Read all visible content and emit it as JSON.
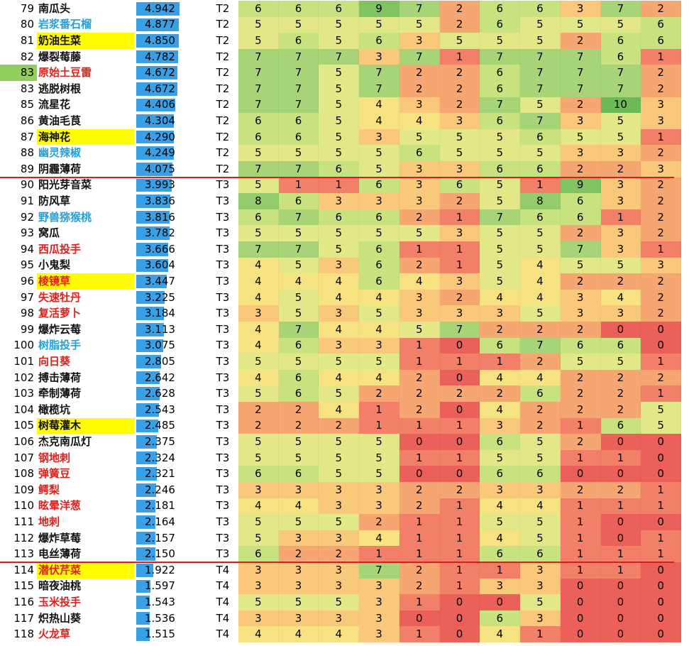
{
  "rows": [
    {
      "rank": "79",
      "name": "南瓜头",
      "color": "black",
      "hl": false,
      "score": "4.942",
      "tier": "T2",
      "vals": [
        6,
        6,
        6,
        9,
        7,
        2,
        6,
        6,
        3,
        7,
        2
      ]
    },
    {
      "rank": "80",
      "name": "岩浆番石榴",
      "color": "blue",
      "hl": false,
      "score": "4.877",
      "tier": "T2",
      "vals": [
        5,
        5,
        5,
        5,
        5,
        2,
        6,
        5,
        5,
        5,
        6
      ]
    },
    {
      "rank": "81",
      "name": "奶油生菜",
      "color": "black",
      "hl": true,
      "score": "4.850",
      "tier": "T2",
      "vals": [
        5,
        6,
        5,
        6,
        3,
        5,
        5,
        5,
        2,
        6,
        6
      ]
    },
    {
      "rank": "82",
      "name": "爆裂莓藤",
      "color": "black",
      "hl": false,
      "score": "4.782",
      "tier": "T2",
      "vals": [
        7,
        7,
        7,
        3,
        7,
        1,
        7,
        7,
        7,
        6,
        1
      ]
    },
    {
      "rank": "83",
      "name": "原始土豆雷",
      "color": "red",
      "hl": false,
      "score": "4.672",
      "tier": "T2",
      "vals": [
        7,
        7,
        5,
        7,
        2,
        2,
        6,
        7,
        7,
        7,
        2
      ],
      "mark": true
    },
    {
      "rank": "83",
      "name": "逃脱树根",
      "color": "black",
      "hl": false,
      "score": "4.672",
      "tier": "T2",
      "vals": [
        7,
        7,
        5,
        7,
        2,
        2,
        6,
        7,
        7,
        7,
        2
      ]
    },
    {
      "rank": "85",
      "name": "流星花",
      "color": "black",
      "hl": false,
      "score": "4.406",
      "tier": "T2",
      "vals": [
        7,
        7,
        5,
        4,
        3,
        2,
        7,
        5,
        2,
        10,
        3
      ]
    },
    {
      "rank": "86",
      "name": "黄油毛茛",
      "color": "black",
      "hl": false,
      "score": "4.304",
      "tier": "T2",
      "vals": [
        6,
        6,
        5,
        4,
        4,
        3,
        6,
        7,
        3,
        5,
        3
      ]
    },
    {
      "rank": "87",
      "name": "海神花",
      "color": "black",
      "hl": true,
      "score": "4.290",
      "tier": "T2",
      "vals": [
        6,
        6,
        5,
        3,
        5,
        5,
        5,
        6,
        5,
        5,
        1
      ]
    },
    {
      "rank": "88",
      "name": "幽灵辣椒",
      "color": "blue",
      "hl": false,
      "score": "4.249",
      "tier": "T2",
      "vals": [
        5,
        5,
        5,
        5,
        6,
        5,
        5,
        5,
        3,
        3,
        2
      ]
    },
    {
      "rank": "89",
      "name": "阴霾薄荷",
      "color": "black",
      "hl": false,
      "score": "4.075",
      "tier": "T2",
      "vals": [
        7,
        7,
        6,
        5,
        3,
        3,
        6,
        6,
        2,
        2,
        3
      ]
    },
    {
      "rank": "90",
      "name": "阳光芽音菜",
      "color": "black",
      "hl": false,
      "score": "3.993",
      "tier": "T3",
      "vals": [
        5,
        1,
        1,
        6,
        3,
        6,
        5,
        1,
        9,
        3,
        2
      ]
    },
    {
      "rank": "91",
      "name": "防风草",
      "color": "black",
      "hl": false,
      "score": "3.836",
      "tier": "T3",
      "vals": [
        8,
        6,
        3,
        3,
        3,
        2,
        5,
        8,
        6,
        3,
        2
      ]
    },
    {
      "rank": "92",
      "name": "野兽猕猴桃",
      "color": "blue",
      "hl": false,
      "score": "3.816",
      "tier": "T3",
      "vals": [
        6,
        7,
        6,
        6,
        2,
        1,
        7,
        6,
        6,
        1,
        2
      ]
    },
    {
      "rank": "93",
      "name": "窝瓜",
      "color": "black",
      "hl": false,
      "score": "3.782",
      "tier": "T3",
      "vals": [
        5,
        5,
        5,
        5,
        5,
        3,
        5,
        5,
        2,
        3,
        2
      ]
    },
    {
      "rank": "94",
      "name": "西瓜投手",
      "color": "red",
      "hl": false,
      "score": "3.666",
      "tier": "T3",
      "vals": [
        7,
        7,
        5,
        6,
        1,
        1,
        5,
        5,
        7,
        3,
        1
      ]
    },
    {
      "rank": "95",
      "name": "小鬼梨",
      "color": "black",
      "hl": false,
      "score": "3.604",
      "tier": "T3",
      "vals": [
        4,
        5,
        3,
        6,
        2,
        1,
        5,
        4,
        5,
        5,
        3
      ]
    },
    {
      "rank": "96",
      "name": "棱镜草",
      "color": "red",
      "hl": true,
      "score": "3.447",
      "tier": "T3",
      "vals": [
        4,
        4,
        4,
        6,
        4,
        3,
        5,
        4,
        2,
        2,
        2
      ]
    },
    {
      "rank": "97",
      "name": "失速牡丹",
      "color": "red",
      "hl": false,
      "score": "3.225",
      "tier": "T3",
      "vals": [
        4,
        5,
        4,
        4,
        3,
        2,
        4,
        4,
        3,
        4,
        2
      ]
    },
    {
      "rank": "98",
      "name": "复活萝卜",
      "color": "red",
      "hl": false,
      "score": "3.184",
      "tier": "T3",
      "vals": [
        3,
        5,
        3,
        5,
        3,
        3,
        3,
        5,
        3,
        3,
        2
      ]
    },
    {
      "rank": "99",
      "name": "爆炸云莓",
      "color": "black",
      "hl": false,
      "score": "3.113",
      "tier": "T3",
      "vals": [
        4,
        7,
        4,
        4,
        5,
        7,
        2,
        2,
        2,
        0,
        0
      ]
    },
    {
      "rank": "100",
      "name": "树脂投手",
      "color": "blue",
      "hl": false,
      "score": "3.075",
      "tier": "T3",
      "vals": [
        4,
        6,
        3,
        3,
        1,
        0,
        6,
        7,
        6,
        6,
        0
      ]
    },
    {
      "rank": "101",
      "name": "向日葵",
      "color": "red",
      "hl": false,
      "score": "2.805",
      "tier": "T3",
      "vals": [
        5,
        5,
        5,
        5,
        1,
        1,
        1,
        2,
        5,
        5,
        1
      ]
    },
    {
      "rank": "102",
      "name": "搏击薄荷",
      "color": "black",
      "hl": false,
      "score": "2.642",
      "tier": "T3",
      "vals": [
        4,
        6,
        4,
        4,
        2,
        0,
        4,
        4,
        2,
        2,
        2
      ]
    },
    {
      "rank": "103",
      "name": "牵制薄荷",
      "color": "black",
      "hl": false,
      "score": "2.628",
      "tier": "T3",
      "vals": [
        5,
        6,
        5,
        2,
        2,
        2,
        2,
        6,
        2,
        2,
        1
      ]
    },
    {
      "rank": "104",
      "name": "橄榄坑",
      "color": "black",
      "hl": false,
      "score": "2.543",
      "tier": "T3",
      "vals": [
        2,
        2,
        4,
        1,
        2,
        0,
        4,
        2,
        2,
        2,
        5
      ]
    },
    {
      "rank": "105",
      "name": "树莓灌木",
      "color": "black",
      "hl": true,
      "score": "2.485",
      "tier": "T3",
      "vals": [
        2,
        2,
        2,
        1,
        1,
        1,
        3,
        2,
        1,
        6,
        5
      ]
    },
    {
      "rank": "106",
      "name": "杰克南瓜灯",
      "color": "black",
      "hl": false,
      "score": "2.375",
      "tier": "T3",
      "vals": [
        5,
        5,
        5,
        5,
        0,
        0,
        6,
        5,
        2,
        0,
        0
      ]
    },
    {
      "rank": "107",
      "name": "钢地刺",
      "color": "red",
      "hl": false,
      "score": "2.324",
      "tier": "T3",
      "vals": [
        5,
        5,
        5,
        5,
        1,
        1,
        5,
        5,
        1,
        1,
        0
      ]
    },
    {
      "rank": "108",
      "name": "弹簧豆",
      "color": "red",
      "hl": false,
      "score": "2.321",
      "tier": "T3",
      "vals": [
        6,
        6,
        5,
        5,
        0,
        0,
        6,
        6,
        0,
        0,
        0
      ]
    },
    {
      "rank": "109",
      "name": "鳄梨",
      "color": "red",
      "hl": false,
      "score": "2.246",
      "tier": "T3",
      "vals": [
        3,
        3,
        3,
        3,
        2,
        2,
        3,
        3,
        2,
        2,
        1
      ]
    },
    {
      "rank": "110",
      "name": "眩晕洋葱",
      "color": "red",
      "hl": false,
      "score": "2.181",
      "tier": "T3",
      "vals": [
        4,
        4,
        3,
        3,
        2,
        1,
        4,
        4,
        1,
        1,
        1
      ]
    },
    {
      "rank": "111",
      "name": "地刺",
      "color": "red",
      "hl": false,
      "score": "2.164",
      "tier": "T3",
      "vals": [
        5,
        5,
        5,
        2,
        1,
        1,
        5,
        5,
        1,
        0,
        0
      ]
    },
    {
      "rank": "112",
      "name": "爆炸草莓",
      "color": "black",
      "hl": false,
      "score": "2.157",
      "tier": "T3",
      "vals": [
        5,
        3,
        3,
        4,
        1,
        1,
        4,
        5,
        1,
        0,
        1
      ]
    },
    {
      "rank": "113",
      "name": "电丝薄荷",
      "color": "black",
      "hl": false,
      "score": "2.150",
      "tier": "T3",
      "vals": [
        6,
        2,
        2,
        1,
        1,
        1,
        6,
        6,
        1,
        1,
        1
      ]
    },
    {
      "rank": "114",
      "name": "潜伏芹菜",
      "color": "red",
      "hl": true,
      "score": "1.922",
      "tier": "T4",
      "vals": [
        3,
        3,
        3,
        7,
        2,
        1,
        1,
        3,
        1,
        1,
        0
      ]
    },
    {
      "rank": "115",
      "name": "暗夜油桃",
      "color": "black",
      "hl": false,
      "score": "1.597",
      "tier": "T4",
      "vals": [
        3,
        3,
        3,
        3,
        2,
        1,
        3,
        3,
        0,
        0,
        0
      ]
    },
    {
      "rank": "116",
      "name": "玉米投手",
      "color": "red",
      "hl": false,
      "score": "1.543",
      "tier": "T4",
      "vals": [
        5,
        5,
        5,
        3,
        1,
        0,
        0,
        5,
        0,
        0,
        0
      ]
    },
    {
      "rank": "117",
      "name": "炽热山葵",
      "color": "black",
      "hl": false,
      "score": "1.536",
      "tier": "T4",
      "vals": [
        3,
        3,
        3,
        3,
        0,
        0,
        6,
        3,
        0,
        0,
        0
      ]
    },
    {
      "rank": "118",
      "name": "火龙草",
      "color": "red",
      "hl": false,
      "score": "1.515",
      "tier": "T4",
      "vals": [
        4,
        4,
        4,
        3,
        1,
        0,
        4,
        1,
        0,
        0,
        0
      ]
    }
  ],
  "tier_breaks_after": [
    10,
    34
  ],
  "colors": {
    "accent_bar": "#3aa0e6",
    "highlight": "#fffb00",
    "tier_line": "#d81e1e",
    "name_red": "#e0201a",
    "name_blue": "#23a0d8"
  }
}
